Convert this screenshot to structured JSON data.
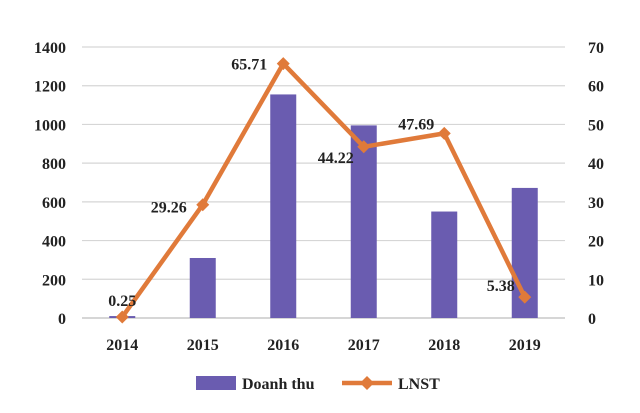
{
  "chart_data": {
    "type": "bar",
    "categories": [
      "2014",
      "2015",
      "2016",
      "2017",
      "2018",
      "2019"
    ],
    "series": [
      {
        "name": "Doanh thu",
        "type": "bar",
        "axis": "left",
        "color": "#6a5cb0",
        "values": [
          10,
          310,
          1155,
          995,
          550,
          672
        ]
      },
      {
        "name": "LNST",
        "type": "line",
        "axis": "right",
        "color": "#e07a3a",
        "marker": "diamond",
        "values": [
          0.25,
          29.26,
          65.71,
          44.22,
          47.69,
          5.38
        ],
        "data_labels": [
          "0.25",
          "29.26",
          "65.71",
          "44.22",
          "47.69",
          "5.38"
        ]
      }
    ],
    "y_left": {
      "ylim": [
        0,
        1400
      ],
      "ticks": [
        "0",
        "200",
        "400",
        "600",
        "800",
        "1000",
        "1200",
        "1400"
      ]
    },
    "y_right": {
      "ylim": [
        0,
        70
      ],
      "ticks": [
        "0",
        "10",
        "20",
        "30",
        "40",
        "50",
        "60",
        "70"
      ]
    },
    "grid": true,
    "legend": "bottom"
  }
}
